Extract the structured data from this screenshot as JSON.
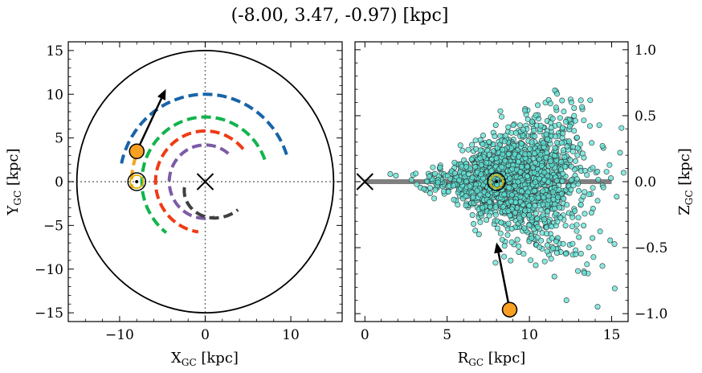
{
  "title": "(-8.00, 3.47, -0.97) [kpc]",
  "colors": {
    "blue": "#1864a8",
    "green": "#11b44c",
    "red": "#ef3b14",
    "purple": "#7c5ba6",
    "dark": "#404040",
    "gold": "#f4a41c",
    "orange": "#f8a021",
    "cyan": "#5ee3d6"
  },
  "chart_data": [
    {
      "type": "line",
      "panel": "left",
      "xlabel": "X",
      "xlabel_sub": "GC",
      "xlabel_unit": " [kpc]",
      "ylabel": "Y",
      "ylabel_sub": "GC",
      "ylabel_unit": " [kpc]",
      "xlim": [
        -16,
        16
      ],
      "ylim": [
        -16,
        16
      ],
      "xticks": [
        -10,
        0,
        10
      ],
      "yticks": [
        -15,
        -10,
        -5,
        0,
        5,
        10,
        15
      ],
      "xtick_labels": [
        "−10",
        "0",
        "10"
      ],
      "ytick_labels": [
        "−15",
        "−10",
        "−5",
        "0",
        "5",
        "10",
        "15"
      ],
      "boundary_circle_radius": 15,
      "reference_lines": {
        "x": 0,
        "y": 0,
        "style": "dotted"
      },
      "galactic_center": [
        0,
        0
      ],
      "sun_position": [
        -8.0,
        0.0
      ],
      "star_position": [
        -8.0,
        3.47
      ],
      "velocity_arrow": {
        "from": [
          -8.0,
          3.47
        ],
        "to": [
          -4.6,
          10.6
        ]
      },
      "spiral_arms": [
        {
          "color": "blue",
          "radius": 10.0,
          "start_deg": 18,
          "end_deg": 168
        },
        {
          "color": "green",
          "radius": 7.4,
          "start_deg": 20,
          "end_deg": 232
        },
        {
          "color": "red",
          "radius": 5.8,
          "start_deg": 40,
          "end_deg": 262
        },
        {
          "color": "purple",
          "radius": 4.2,
          "start_deg": 50,
          "end_deg": 285
        },
        {
          "color": "dark",
          "radius": 2.5,
          "start_deg": 195,
          "end_deg": 320,
          "radius_end": 5.0
        },
        {
          "color": "gold",
          "radius": 8.6,
          "start_deg": 160,
          "end_deg": 185
        }
      ]
    },
    {
      "type": "scatter",
      "panel": "right",
      "xlabel": "R",
      "xlabel_sub": "GC",
      "xlabel_unit": " [kpc]",
      "ylabel": "Z",
      "ylabel_sub": "GC",
      "ylabel_unit": " [kpc]",
      "xlim": [
        -0.6,
        16
      ],
      "ylim": [
        -1.06,
        1.06
      ],
      "xticks": [
        0,
        5,
        10,
        15
      ],
      "yticks": [
        -1.0,
        -0.5,
        0.0,
        0.5,
        1.0
      ],
      "xtick_labels": [
        "0",
        "5",
        "10",
        "15"
      ],
      "ytick_labels": [
        "−1.0",
        "−0.5",
        "0.0",
        "0.5",
        "1.0"
      ],
      "disk_line": {
        "x": [
          0,
          15
        ],
        "y": 0
      },
      "galactic_center": [
        0,
        0
      ],
      "sun_position": [
        8.0,
        0.0
      ],
      "star_position": [
        8.8,
        -0.97
      ],
      "velocity_arrow": {
        "from": [
          8.8,
          -0.97
        ],
        "to": [
          8.0,
          -0.46
        ]
      },
      "points": {
        "count": 1800,
        "center": [
          9.2,
          0.0
        ],
        "r_range": [
          0.5,
          16
        ],
        "z_range": [
          -1.0,
          1.0
        ],
        "flare": "thickens with R"
      }
    }
  ]
}
